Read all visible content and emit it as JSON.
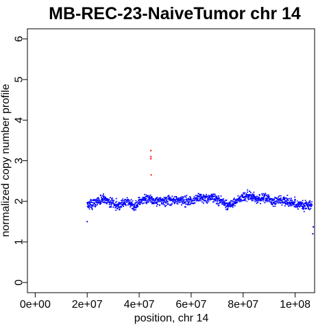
{
  "chart_data": {
    "type": "scatter",
    "title": "MB-REC-23-NaiveTumor chr 14",
    "xlabel": "position, chr 14",
    "ylabel": "normalized copy number profile",
    "xlim": [
      -3000000,
      107500000
    ],
    "ylim": [
      -0.25,
      6.25
    ],
    "x_ticks": [
      0,
      20000000,
      40000000,
      60000000,
      80000000,
      100000000
    ],
    "x_tick_labels": [
      "0e+00",
      "2e+07",
      "4e+07",
      "6e+07",
      "8e+07",
      "1e+08"
    ],
    "y_ticks": [
      0,
      1,
      2,
      3,
      4,
      5,
      6
    ],
    "y_tick_labels": [
      "0",
      "1",
      "2",
      "3",
      "4",
      "5",
      "6"
    ],
    "grid": false,
    "legend": "none",
    "colors": {
      "points": "#0000ff",
      "outliers": "#ff0000",
      "segment": "#ffffff"
    },
    "series": [
      {
        "values_profile": [
          [
            20000000,
            1.9
          ],
          [
            22000000,
            1.95
          ],
          [
            24000000,
            2.0
          ],
          [
            26000000,
            2.05
          ],
          [
            28000000,
            2.0
          ],
          [
            30000000,
            1.95
          ],
          [
            32000000,
            1.9
          ],
          [
            34000000,
            1.98
          ],
          [
            36000000,
            2.0
          ],
          [
            38000000,
            1.85
          ],
          [
            40000000,
            2.0
          ],
          [
            42000000,
            2.05
          ],
          [
            44000000,
            2.05
          ],
          [
            46000000,
            2.0
          ],
          [
            48000000,
            2.02
          ],
          [
            50000000,
            2.0
          ],
          [
            52000000,
            2.05
          ],
          [
            54000000,
            2.0
          ],
          [
            56000000,
            2.05
          ],
          [
            58000000,
            2.0
          ],
          [
            60000000,
            2.02
          ],
          [
            62000000,
            2.05
          ],
          [
            64000000,
            2.1
          ],
          [
            66000000,
            2.05
          ],
          [
            68000000,
            2.1
          ],
          [
            70000000,
            2.05
          ],
          [
            72000000,
            2.0
          ],
          [
            74000000,
            1.9
          ],
          [
            76000000,
            1.95
          ],
          [
            78000000,
            2.05
          ],
          [
            80000000,
            2.1
          ],
          [
            82000000,
            2.15
          ],
          [
            84000000,
            2.1
          ],
          [
            86000000,
            2.05
          ],
          [
            88000000,
            2.1
          ],
          [
            90000000,
            2.05
          ],
          [
            92000000,
            2.0
          ],
          [
            94000000,
            2.05
          ],
          [
            96000000,
            2.0
          ],
          [
            98000000,
            1.98
          ],
          [
            100000000,
            1.95
          ],
          [
            102000000,
            1.92
          ],
          [
            104000000,
            1.9
          ],
          [
            106000000,
            1.92
          ]
        ],
        "x_range": [
          20000000,
          106500000
        ],
        "spread": 0.12
      }
    ],
    "segments": [
      {
        "x0": 20000000,
        "x1": 106500000,
        "y": 2.0
      }
    ],
    "outliers": [
      {
        "x": 44500000,
        "y": 3.25
      },
      {
        "x": 44500000,
        "y": 3.1
      },
      {
        "x": 44500000,
        "y": 3.05
      },
      {
        "x": 44600000,
        "y": 2.65
      }
    ],
    "low_points": [
      {
        "x": 20000000,
        "y": 1.5
      },
      {
        "x": 107000000,
        "y": 1.37
      },
      {
        "x": 106800000,
        "y": 1.2
      }
    ]
  }
}
